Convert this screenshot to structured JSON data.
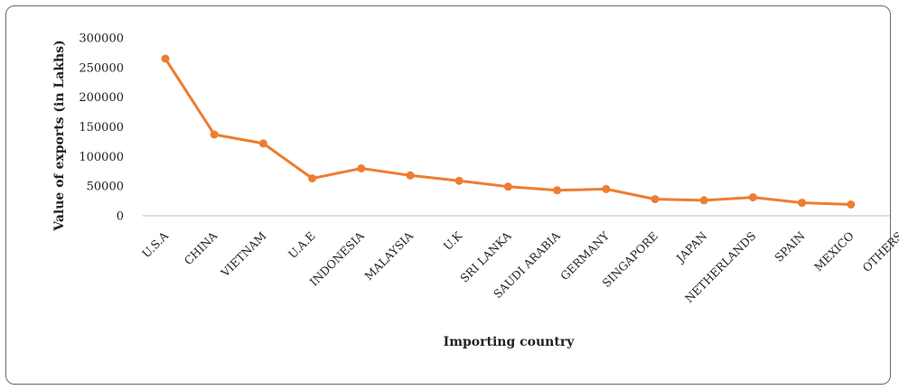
{
  "chart_data": {
    "type": "line",
    "categories": [
      "U.S.A",
      "CHINA",
      "VIETNAM",
      "U.A.E",
      "INDONESIA",
      "MALAYSIA",
      "U.K",
      "SRI LANKA",
      "SAUDI ARABIA",
      "GERMANY",
      "SINGAPORE",
      "JAPAN",
      "NETHERLANDS",
      "SPAIN",
      "MEXICO",
      "OTHERS"
    ],
    "values": [
      265000,
      137000,
      122000,
      63000,
      80000,
      68000,
      59000,
      49000,
      43000,
      45000,
      28000,
      26000,
      31000,
      22000,
      19000,
      null
    ],
    "xlabel": "Importing country",
    "ylabel": "Value of exports (in Lakhs)",
    "ylim": [
      0,
      300000
    ],
    "yticks": [
      0,
      50000,
      100000,
      150000,
      200000,
      250000,
      300000
    ],
    "ytick_labels": [
      "0",
      "50000",
      "100000",
      "150000",
      "200000",
      "250000",
      "300000"
    ],
    "grid": false,
    "legend": "none",
    "line_color": "#ED7D31"
  }
}
